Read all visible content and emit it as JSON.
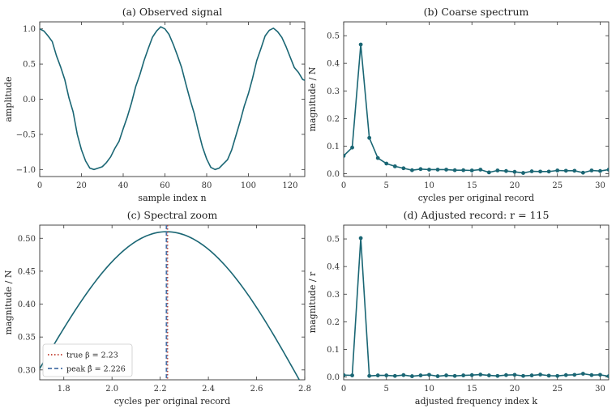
{
  "colors": {
    "series": "#1a6674",
    "true_line": "#c0392b",
    "peak_line": "#4a72a8",
    "axis": "#333333"
  },
  "chart_data": [
    {
      "id": "a",
      "type": "line",
      "title": "(a) Observed signal",
      "xlabel": "sample index n",
      "ylabel": "amplitude",
      "xlim": [
        0,
        127
      ],
      "ylim": [
        -1.1,
        1.1
      ],
      "xticks": [
        0,
        20,
        40,
        60,
        80,
        100,
        120
      ],
      "yticks": [
        -1.0,
        -0.5,
        0.0,
        0.5,
        1.0
      ],
      "ytick_labels": [
        "−1.0",
        "−0.5",
        "0.0",
        "0.5",
        "1.0"
      ],
      "series": [
        {
          "x": [
            0,
            2,
            4,
            6,
            8,
            10,
            12,
            14,
            16,
            18,
            20,
            22,
            24,
            26,
            28,
            30,
            32,
            34,
            36,
            38,
            40,
            42,
            44,
            46,
            48,
            50,
            52,
            54,
            56,
            58,
            60,
            62,
            64,
            66,
            68,
            70,
            72,
            74,
            76,
            78,
            80,
            82,
            84,
            86,
            88,
            90,
            92,
            94,
            96,
            98,
            100,
            102,
            104,
            106,
            108,
            110,
            112,
            114,
            116,
            118,
            120,
            122,
            124,
            126,
            127
          ],
          "y": [
            1.0,
            0.97,
            0.9,
            0.82,
            0.62,
            0.46,
            0.28,
            0.02,
            -0.18,
            -0.5,
            -0.72,
            -0.88,
            -0.98,
            -1.0,
            -0.98,
            -0.96,
            -0.9,
            -0.82,
            -0.7,
            -0.6,
            -0.42,
            -0.25,
            -0.05,
            0.18,
            0.35,
            0.55,
            0.72,
            0.88,
            0.97,
            1.03,
            1.0,
            0.92,
            0.78,
            0.62,
            0.45,
            0.22,
            0.0,
            -0.2,
            -0.45,
            -0.68,
            -0.85,
            -0.97,
            -1.0,
            -0.98,
            -0.92,
            -0.86,
            -0.72,
            -0.52,
            -0.32,
            -0.1,
            0.08,
            0.3,
            0.55,
            0.72,
            0.9,
            0.98,
            1.01,
            0.96,
            0.88,
            0.75,
            0.6,
            0.45,
            0.38,
            0.28,
            0.27
          ]
        }
      ]
    },
    {
      "id": "b",
      "type": "line",
      "title": "(b) Coarse spectrum",
      "xlabel": "cycles per original record",
      "ylabel": "magnitude / N",
      "xlim": [
        0,
        31
      ],
      "ylim": [
        -0.01,
        0.55
      ],
      "xticks": [
        0,
        5,
        10,
        15,
        20,
        25,
        30
      ],
      "yticks": [
        0.0,
        0.1,
        0.2,
        0.3,
        0.4,
        0.5
      ],
      "ytick_labels": [
        "0.0",
        "0.1",
        "0.2",
        "0.3",
        "0.4",
        "0.5"
      ],
      "markers": true,
      "series": [
        {
          "x": [
            0,
            1,
            2,
            3,
            4,
            5,
            6,
            7,
            8,
            9,
            10,
            11,
            12,
            13,
            14,
            15,
            16,
            17,
            18,
            19,
            20,
            21,
            22,
            23,
            24,
            25,
            26,
            27,
            28,
            29,
            30,
            31
          ],
          "y": [
            0.065,
            0.095,
            0.468,
            0.13,
            0.057,
            0.037,
            0.027,
            0.02,
            0.013,
            0.017,
            0.015,
            0.015,
            0.015,
            0.013,
            0.013,
            0.012,
            0.015,
            0.005,
            0.012,
            0.01,
            0.007,
            0.003,
            0.009,
            0.008,
            0.008,
            0.012,
            0.011,
            0.011,
            0.004,
            0.012,
            0.01,
            0.015
          ]
        }
      ]
    },
    {
      "id": "c",
      "type": "line",
      "title": "(c) Spectral zoom",
      "xlabel": "cycles per original record",
      "ylabel": "magnitude / N",
      "xlim": [
        1.7,
        2.8
      ],
      "ylim": [
        0.285,
        0.52
      ],
      "xticks": [
        1.8,
        2.0,
        2.2,
        2.4,
        2.6,
        2.8
      ],
      "xtick_labels": [
        "1.8",
        "2.0",
        "2.2",
        "2.4",
        "2.6",
        "2.8"
      ],
      "yticks": [
        0.3,
        0.35,
        0.4,
        0.45,
        0.5
      ],
      "ytick_labels": [
        "0.30",
        "0.35",
        "0.40",
        "0.45",
        "0.50"
      ],
      "curve": {
        "peak_x": 2.226,
        "peak_y": 0.51,
        "left_x": 1.7,
        "left_y": 0.302,
        "right_x": 2.8,
        "right_y": 0.27
      },
      "vlines": [
        {
          "x": 2.23,
          "label": "true β = 2.23",
          "style": "dotted",
          "color_key": "true_line"
        },
        {
          "x": 2.226,
          "label": "peak β̂ = 2.226",
          "style": "dashed",
          "color_key": "peak_line"
        }
      ],
      "legend": "bottom-left"
    },
    {
      "id": "d",
      "type": "line",
      "title": "(d) Adjusted record: r = 115",
      "xlabel": "adjusted frequency index k",
      "ylabel": "magnitude / r",
      "xlim": [
        0,
        31
      ],
      "ylim": [
        -0.01,
        0.55
      ],
      "xticks": [
        0,
        5,
        10,
        15,
        20,
        25,
        30
      ],
      "yticks": [
        0.0,
        0.1,
        0.2,
        0.3,
        0.4,
        0.5
      ],
      "ytick_labels": [
        "0.0",
        "0.1",
        "0.2",
        "0.3",
        "0.4",
        "0.5"
      ],
      "markers": true,
      "series": [
        {
          "x": [
            0,
            1,
            2,
            3,
            4,
            5,
            6,
            7,
            8,
            9,
            10,
            11,
            12,
            13,
            14,
            15,
            16,
            17,
            18,
            19,
            20,
            21,
            22,
            23,
            24,
            25,
            26,
            27,
            28,
            29,
            30,
            31
          ],
          "y": [
            0.007,
            0.006,
            0.503,
            0.004,
            0.006,
            0.006,
            0.004,
            0.007,
            0.003,
            0.006,
            0.008,
            0.003,
            0.006,
            0.004,
            0.006,
            0.007,
            0.009,
            0.006,
            0.004,
            0.007,
            0.008,
            0.004,
            0.006,
            0.009,
            0.005,
            0.004,
            0.007,
            0.008,
            0.012,
            0.007,
            0.008,
            0.003
          ]
        }
      ]
    }
  ]
}
